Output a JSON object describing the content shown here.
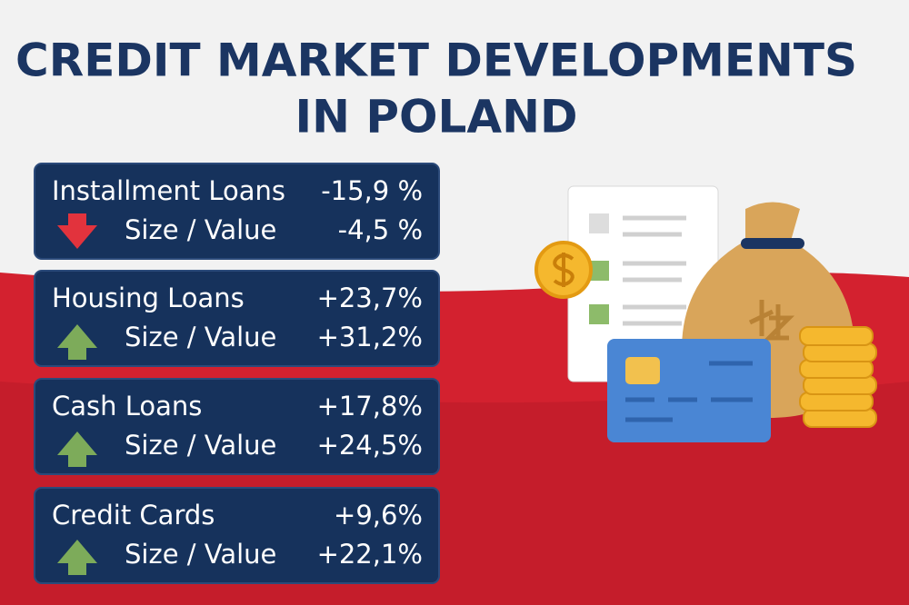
{
  "header": {
    "title_lines": [
      "CREDIT MARKET DEVELOPMENTS",
      "IN POLAND"
    ]
  },
  "cards": [
    {
      "name": "Installment Loans",
      "value": "-15,9 %",
      "sub_label": "Size / Value",
      "sub_value": "-4,5 %"
    },
    {
      "name": "Housing Loans",
      "value": "+23,7%",
      "sub_label": "Size / Value",
      "sub_value": "+31,2%"
    },
    {
      "name": "Cash Loans",
      "value": "+17,8%",
      "sub_label": "Size / Value",
      "sub_value": "+24,5%"
    },
    {
      "name": "Credit Cards",
      "value": "+9,6%",
      "sub_label": "Size / Value",
      "sub_value": "+22,1%"
    }
  ]
}
